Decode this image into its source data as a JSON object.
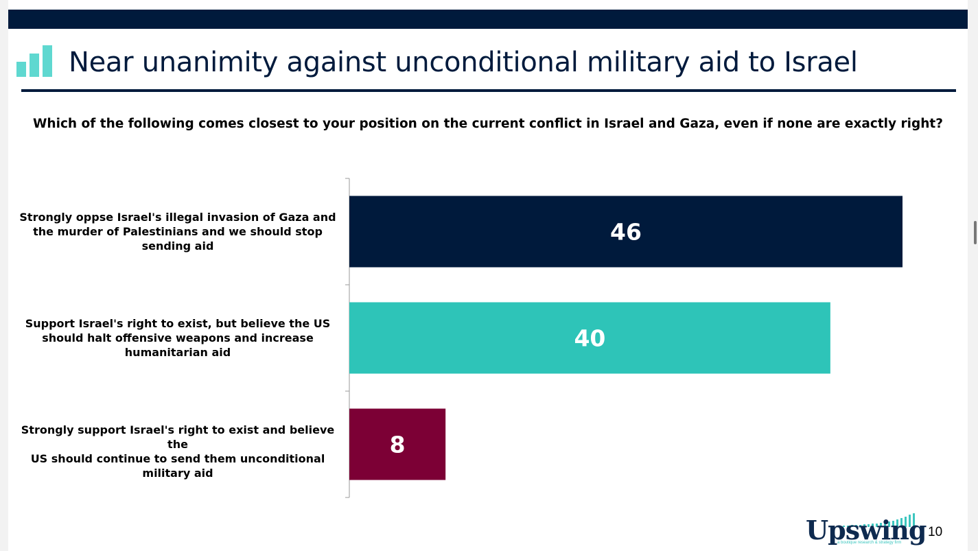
{
  "header": {
    "title": "Near unanimity against unconditional military aid to Israel"
  },
  "question": "Which of the following comes closest to your position on the current conflict in Israel and Gaza, even if none are exactly right?",
  "chart_data": {
    "type": "bar",
    "orientation": "horizontal",
    "title": "Which of the following comes closest to your position on the current conflict in Israel and Gaza, even if none are exactly right?",
    "categories": [
      "Strongly oppse Israel's illegal invasion of Gaza and the murder of Palestinians and we should stop sending aid",
      "Support Israel's right to exist, but believe the US should halt offensive weapons and increase humanitarian aid",
      "Strongly support Israel's right to exist and believe the US should continue to send them unconditional military aid"
    ],
    "category_lines": [
      [
        "Strongly oppse Israel's illegal invasion of Gaza and",
        "the murder of Palestinians and we should stop",
        "sending aid"
      ],
      [
        "Support Israel's right to exist, but believe the US",
        "should halt offensive weapons and increase",
        "humanitarian aid"
      ],
      [
        "Strongly support Israel's right to exist and believe the",
        "US should continue to send them unconditional",
        "military aid"
      ]
    ],
    "values": [
      46,
      40,
      8
    ],
    "data_labels": [
      "46",
      "40",
      "8"
    ],
    "colors": [
      "#001a3c",
      "#2ec4b8",
      "#7c0035"
    ],
    "xlim": [
      0,
      50
    ],
    "grid": false,
    "legend": "none",
    "xlabel": "",
    "ylabel": ""
  },
  "footer": {
    "brand": "Upswing",
    "tagline": "a boutique research & strategy firm",
    "page_number": "10"
  },
  "colors": {
    "navy": "#001a3c",
    "teal": "#2ec4b8",
    "logo_teal": "#5fd8d0"
  },
  "icons": {
    "title_icon": "bar-chart-icon",
    "brand_icon": "equalizer-icon"
  }
}
